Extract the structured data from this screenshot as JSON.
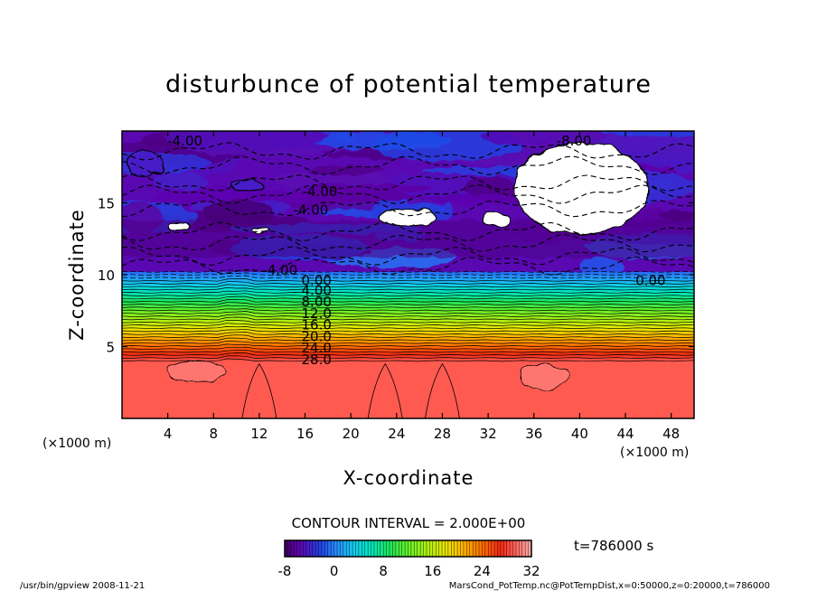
{
  "chart_data": {
    "type": "heatmap",
    "title": "disturbunce of potential temperature",
    "xlabel": "X-coordinate",
    "ylabel": "Z-coordinate",
    "x_unit": "(×1000 m)",
    "z_unit": "(×1000 m)",
    "xlim": [
      0,
      50
    ],
    "zlim": [
      0,
      20
    ],
    "x_ticks": [
      4,
      8,
      12,
      16,
      20,
      24,
      28,
      32,
      36,
      40,
      44,
      48
    ],
    "z_ticks": [
      5,
      10,
      15
    ],
    "contour_interval_text": "CONTOUR INTERVAL = 2.000E+00",
    "time_text": "t=786000 s",
    "colorbar": {
      "min": -8,
      "max": 32,
      "ticks": [
        -8,
        0,
        8,
        16,
        24,
        32
      ]
    },
    "stratified_profile": [
      {
        "z": 10.2,
        "value": -2
      },
      {
        "z": 9.6,
        "value": 0
      },
      {
        "z": 9.1,
        "value": 4
      },
      {
        "z": 8.6,
        "value": 8
      },
      {
        "z": 7.8,
        "value": 12
      },
      {
        "z": 7.0,
        "value": 16
      },
      {
        "z": 6.1,
        "value": 20
      },
      {
        "z": 5.3,
        "value": 24
      },
      {
        "z": 4.4,
        "value": 28
      }
    ],
    "contour_labels": [
      {
        "text": "-4.00",
        "x": 5.5,
        "z": 19.3
      },
      {
        "text": "-8.00",
        "x": 39.5,
        "z": 19.3
      },
      {
        "text": "-4.00",
        "x": 17.3,
        "z": 15.8
      },
      {
        "text": "-4.00",
        "x": 16.5,
        "z": 14.5
      },
      {
        "text": "-4.00",
        "x": 13.8,
        "z": 10.3
      },
      {
        "text": "0.00",
        "x": 17.0,
        "z": 9.6
      },
      {
        "text": "0.00",
        "x": 46.2,
        "z": 9.6
      },
      {
        "text": "4.00",
        "x": 17.0,
        "z": 8.9
      },
      {
        "text": "8.00",
        "x": 17.0,
        "z": 8.1
      },
      {
        "text": "12.0",
        "x": 17.0,
        "z": 7.3
      },
      {
        "text": "16.0",
        "x": 17.0,
        "z": 6.5
      },
      {
        "text": "20.0",
        "x": 17.0,
        "z": 5.7
      },
      {
        "text": "24.0",
        "x": 17.0,
        "z": 4.9
      },
      {
        "text": "28.0",
        "x": 17.0,
        "z": 4.1
      }
    ],
    "regions": [
      {
        "kind": "below-range",
        "value": -8.5,
        "x": [
          34.3,
          46.0
        ],
        "z": [
          12.8,
          19.2
        ]
      },
      {
        "kind": "below-range",
        "value": -8.5,
        "x": [
          22.5,
          27.5
        ],
        "z": [
          13.4,
          14.6
        ]
      },
      {
        "kind": "below-range",
        "value": -8.5,
        "x": [
          31.5,
          34.0
        ],
        "z": [
          13.4,
          14.3
        ]
      },
      {
        "kind": "below-range",
        "value": -8.5,
        "x": [
          4.2,
          5.8
        ],
        "z": [
          13.1,
          13.6
        ]
      },
      {
        "kind": "below-range",
        "value": -8.5,
        "x": [
          11.3,
          12.8
        ],
        "z": [
          12.9,
          13.3
        ]
      },
      {
        "kind": "low",
        "value": -4,
        "x": [
          0.5,
          3.6
        ],
        "z": [
          16.8,
          18.6
        ]
      },
      {
        "kind": "low",
        "value": -4,
        "x": [
          9.5,
          12.5
        ],
        "z": [
          15.8,
          16.6
        ]
      },
      {
        "kind": "warm",
        "value": 30,
        "x": [
          34.8,
          39.0
        ],
        "z": [
          2.0,
          3.8
        ]
      },
      {
        "kind": "warm",
        "value": 30,
        "x": [
          4.0,
          9.0
        ],
        "z": [
          2.5,
          4.0
        ]
      }
    ]
  },
  "footer": {
    "left": "/usr/bin/gpview   2008-11-21",
    "right": "MarsCond_PotTemp.nc@PotTempDist,x=0:50000,z=0:20000,t=786000"
  }
}
